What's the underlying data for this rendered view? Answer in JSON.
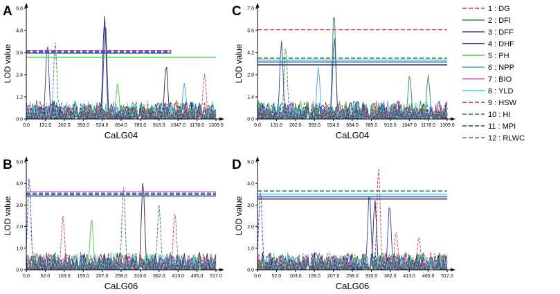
{
  "figure": {
    "ylabel": "LOD value",
    "legend": [
      {
        "label": "1 : DG",
        "color": "#e0383c",
        "dashed": true
      },
      {
        "label": "2 : DFI",
        "color": "#2e8b57",
        "dashed": false
      },
      {
        "label": "3 : DFF",
        "color": "#2b3f9e",
        "dashed": false
      },
      {
        "label": "4 : DHF",
        "color": "#1a1a5e",
        "dashed": false
      },
      {
        "label": "5 : PH",
        "color": "#3ccf3c",
        "dashed": false
      },
      {
        "label": "6 : NPP",
        "color": "#3aa6d8",
        "dashed": false
      },
      {
        "label": "7 : BIO",
        "color": "#e05ad8",
        "dashed": false
      },
      {
        "label": "8 : YLD",
        "color": "#33d6e0",
        "dashed": false
      },
      {
        "label": "9 : HSW",
        "color": "#c02020",
        "dashed": true
      },
      {
        "label": "10 : HI",
        "color": "#3a7a5a",
        "dashed": true
      },
      {
        "label": "11 : MPI",
        "color": "#2038a8",
        "dashed": true
      },
      {
        "label": "12 : RLWC",
        "color": "#666666",
        "dashed": true
      }
    ]
  },
  "chart_data": [
    {
      "panel": "A",
      "type": "line",
      "xlabel": "CaLG04",
      "ylabel": "LOD value",
      "xlim": [
        0,
        1309
      ],
      "ylim": [
        0,
        6.0
      ],
      "xticks": [
        "0.0",
        "131.0",
        "262.0",
        "393.0",
        "524.0",
        "654.0",
        "785.0",
        "916.0",
        "1047.0",
        "1178.0",
        "1309.0"
      ],
      "yticks": [
        "0.0",
        "1.2",
        "2.4",
        "3.6",
        "4.8",
        "6.0"
      ],
      "thresholds": [
        {
          "trait": "BIO",
          "value": 3.72,
          "x_end": 1000
        },
        {
          "trait": "MPI",
          "value": 3.68,
          "x_end": 1000
        },
        {
          "trait": "HI",
          "value": 3.62,
          "x_end": 1000
        },
        {
          "trait": "DFF",
          "value": 3.57,
          "x_end": 1000
        },
        {
          "trait": "PH",
          "value": 3.35,
          "x_end": 1309
        }
      ],
      "peaks": [
        {
          "trait": "DFF",
          "x": 145,
          "y": 4.1
        },
        {
          "trait": "HI",
          "x": 200,
          "y": 4.15
        },
        {
          "trait": "DHF",
          "x": 540,
          "y": 5.6
        },
        {
          "trait": "DFF",
          "x": 545,
          "y": 5.35
        },
        {
          "trait": "PH",
          "x": 630,
          "y": 1.95
        },
        {
          "trait": "DHF",
          "x": 965,
          "y": 2.95
        },
        {
          "trait": "NPP",
          "x": 1090,
          "y": 1.95
        },
        {
          "trait": "DG",
          "x": 1230,
          "y": 2.45
        }
      ]
    },
    {
      "panel": "B",
      "type": "line",
      "xlabel": "CaLG06",
      "ylabel": "LOD value",
      "xlim": [
        0,
        517
      ],
      "ylim": [
        0,
        5.0
      ],
      "xticks": [
        "0.0",
        "52.0",
        "103.0",
        "155.0",
        "207.0",
        "258.0",
        "310.0",
        "362.0",
        "413.0",
        "465.0",
        "517.0"
      ],
      "yticks": [
        "0.0",
        "1.0",
        "2.0",
        "3.0",
        "4.0",
        "5.0"
      ],
      "thresholds": [
        {
          "trait": "BIO",
          "value": 3.62,
          "x_end": 517
        },
        {
          "trait": "HI",
          "value": 3.55,
          "x_end": 517
        },
        {
          "trait": "MPI",
          "value": 3.48,
          "x_end": 517
        },
        {
          "trait": "DFF",
          "value": 3.42,
          "x_end": 517
        }
      ],
      "peaks": [
        {
          "trait": "MPI",
          "x": 8,
          "y": 4.35
        },
        {
          "trait": "DG",
          "x": 100,
          "y": 2.5
        },
        {
          "trait": "PH",
          "x": 178,
          "y": 2.4
        },
        {
          "trait": "HI",
          "x": 265,
          "y": 3.85
        },
        {
          "trait": "DHF",
          "x": 318,
          "y": 4.1
        },
        {
          "trait": "HI",
          "x": 362,
          "y": 3.0
        },
        {
          "trait": "DG",
          "x": 405,
          "y": 2.75
        }
      ]
    },
    {
      "panel": "C",
      "type": "line",
      "xlabel": "CaLG04",
      "ylabel": "LOD value",
      "xlim": [
        0,
        1309
      ],
      "ylim": [
        0,
        7.0
      ],
      "xticks": [
        "0.0",
        "131.0",
        "262.0",
        "393.0",
        "524.0",
        "654.0",
        "785.0",
        "916.0",
        "1047.0",
        "1178.0",
        "1309.0"
      ],
      "yticks": [
        "0.0",
        "1.4",
        "2.8",
        "4.2",
        "5.6",
        "7.0"
      ],
      "thresholds": [
        {
          "trait": "DG",
          "value": 5.65,
          "x_end": 1309
        },
        {
          "trait": "HI",
          "value": 3.85,
          "x_end": 1309
        },
        {
          "trait": "YLD",
          "value": 3.72,
          "x_end": 1309
        },
        {
          "trait": "DFF",
          "value": 3.6,
          "x_end": 1309
        },
        {
          "trait": "DHF",
          "value": 3.42,
          "x_end": 1309
        }
      ],
      "peaks": [
        {
          "trait": "DFF",
          "x": 165,
          "y": 4.95
        },
        {
          "trait": "HI",
          "x": 195,
          "y": 4.6
        },
        {
          "trait": "DFI",
          "x": 528,
          "y": 6.9
        },
        {
          "trait": "DFF",
          "x": 530,
          "y": 5.2
        },
        {
          "trait": "NPP",
          "x": 420,
          "y": 3.3
        },
        {
          "trait": "DFI",
          "x": 1178,
          "y": 2.8
        },
        {
          "trait": "DFI",
          "x": 1050,
          "y": 2.8
        }
      ]
    },
    {
      "panel": "D",
      "type": "line",
      "xlabel": "CaLG06",
      "ylabel": "LOD value",
      "xlim": [
        0,
        517
      ],
      "ylim": [
        0,
        5.0
      ],
      "xticks": [
        "0.0",
        "52.0",
        "103.0",
        "155.0",
        "207.0",
        "258.0",
        "310.0",
        "362.0",
        "413.0",
        "465.0",
        "517.0"
      ],
      "yticks": [
        "0.0",
        "1.0",
        "2.0",
        "3.0",
        "4.0",
        "5.0"
      ],
      "thresholds": [
        {
          "trait": "HI",
          "value": 3.65,
          "x_end": 517
        },
        {
          "trait": "YLD",
          "value": 3.5,
          "x_end": 517
        },
        {
          "trait": "DFF",
          "value": 3.38,
          "x_end": 517
        },
        {
          "trait": "DHF",
          "value": 3.28,
          "x_end": 517
        }
      ],
      "peaks": [
        {
          "trait": "MPI",
          "x": 8,
          "y": 3.8
        },
        {
          "trait": "DG",
          "x": 330,
          "y": 4.8
        },
        {
          "trait": "DFF",
          "x": 305,
          "y": 3.6
        },
        {
          "trait": "DHF",
          "x": 320,
          "y": 3.25
        },
        {
          "trait": "DFF",
          "x": 360,
          "y": 3.05
        },
        {
          "trait": "DG",
          "x": 378,
          "y": 1.8
        },
        {
          "trait": "DG",
          "x": 440,
          "y": 1.55
        }
      ]
    }
  ]
}
